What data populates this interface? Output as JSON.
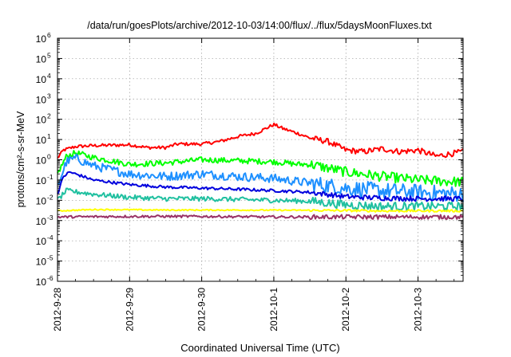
{
  "chart_data": {
    "type": "line",
    "title": "/data/run/goesPlots/archive/2012-10-03/14:00/flux/../flux/5daysMoonFluxes.txt",
    "xlabel": "Coordinated Universal Time (UTC)",
    "ylabel": "protons/cm²-s-sr-MeV",
    "y_scale": "log",
    "ylim": [
      1e-06,
      1000000.0
    ],
    "y_ticks": [
      {
        "exp": "-6"
      },
      {
        "exp": "-5"
      },
      {
        "exp": "-4"
      },
      {
        "exp": "-3"
      },
      {
        "exp": "-2"
      },
      {
        "exp": "-1"
      },
      {
        "exp": "0"
      },
      {
        "exp": "1"
      },
      {
        "exp": "2"
      },
      {
        "exp": "3"
      },
      {
        "exp": "4"
      },
      {
        "exp": "5"
      },
      {
        "exp": "6"
      }
    ],
    "y_tick_base": "10",
    "xlim": [
      "2012-09-28",
      "2012-10-03 15:00"
    ],
    "x_ticks": [
      "2012-9-28",
      "2012-9-29",
      "2012-9-30",
      "2012-10-1",
      "2012-10-2",
      "2012-10-3"
    ],
    "grid": true,
    "legend": "none",
    "series": [
      {
        "color": "#ff0000",
        "noise": 0.08,
        "points": [
          [
            "2012-09-28",
            1.2
          ],
          [
            "2012-09-28 02:00",
            3
          ],
          [
            "2012-09-28 06:00",
            4.5
          ],
          [
            "2012-09-28 12:00",
            5
          ],
          [
            "2012-09-29 00:00",
            5.5
          ],
          [
            "2012-09-29 06:00",
            4
          ],
          [
            "2012-09-29 12:00",
            4
          ],
          [
            "2012-09-29 16:00",
            6
          ],
          [
            "2012-09-30 00:00",
            6
          ],
          [
            "2012-09-30 06:00",
            8
          ],
          [
            "2012-09-30 12:00",
            14
          ],
          [
            "2012-09-30 18:00",
            20
          ],
          [
            "2012-10-01 00:00",
            55
          ],
          [
            "2012-10-01 03:00",
            35
          ],
          [
            "2012-10-01 08:00",
            20
          ],
          [
            "2012-10-01 12:00",
            12
          ],
          [
            "2012-10-01 18:00",
            8
          ],
          [
            "2012-10-02 00:00",
            3
          ],
          [
            "2012-10-02 06:00",
            2.5
          ],
          [
            "2012-10-02 12:00",
            3.5
          ],
          [
            "2012-10-02 18:00",
            2.5
          ],
          [
            "2012-10-03 00:00",
            3
          ],
          [
            "2012-10-03 06:00",
            1.5
          ],
          [
            "2012-10-03 15:00",
            2.5
          ]
        ]
      },
      {
        "color": "#00ff00",
        "noise": 0.14,
        "points": [
          [
            "2012-09-28",
            0.2
          ],
          [
            "2012-09-28 03:00",
            1.5
          ],
          [
            "2012-09-28 06:00",
            2.2
          ],
          [
            "2012-09-28 12:00",
            1.3
          ],
          [
            "2012-09-29 00:00",
            0.6
          ],
          [
            "2012-09-29 12:00",
            0.7
          ],
          [
            "2012-09-30 00:00",
            1.0
          ],
          [
            "2012-09-30 12:00",
            0.9
          ],
          [
            "2012-10-01 00:00",
            0.8
          ],
          [
            "2012-10-01 08:00",
            0.6
          ],
          [
            "2012-10-01 12:00",
            0.6
          ],
          [
            "2012-10-02 00:00",
            0.25
          ],
          [
            "2012-10-02 12:00",
            0.15
          ],
          [
            "2012-10-03 00:00",
            0.1
          ],
          [
            "2012-10-03 15:00",
            0.08
          ]
        ]
      },
      {
        "color": "#1e90ff",
        "noise": 0.22,
        "points": [
          [
            "2012-09-28",
            0.05
          ],
          [
            "2012-09-28 03:00",
            0.8
          ],
          [
            "2012-09-28 06:00",
            1.2
          ],
          [
            "2012-09-28 12:00",
            0.5
          ],
          [
            "2012-09-29 00:00",
            0.2
          ],
          [
            "2012-09-29 12:00",
            0.15
          ],
          [
            "2012-09-30 00:00",
            0.2
          ],
          [
            "2012-09-30 12:00",
            0.15
          ],
          [
            "2012-10-01 00:00",
            0.12
          ],
          [
            "2012-10-01 12:00",
            0.07
          ],
          [
            "2012-10-02 00:00",
            0.04
          ],
          [
            "2012-10-02 12:00",
            0.03
          ],
          [
            "2012-10-03 00:00",
            0.025
          ],
          [
            "2012-10-03 15:00",
            0.02
          ]
        ]
      },
      {
        "color": "#0000dd",
        "noise": 0.07,
        "points": [
          [
            "2012-09-28",
            0.02
          ],
          [
            "2012-09-28 02:00",
            0.15
          ],
          [
            "2012-09-28 04:00",
            0.25
          ],
          [
            "2012-09-28 12:00",
            0.1
          ],
          [
            "2012-09-29 00:00",
            0.06
          ],
          [
            "2012-09-29 12:00",
            0.045
          ],
          [
            "2012-09-30 00:00",
            0.04
          ],
          [
            "2012-09-30 12:00",
            0.035
          ],
          [
            "2012-10-01 00:00",
            0.03
          ],
          [
            "2012-10-01 12:00",
            0.025
          ],
          [
            "2012-10-02 00:00",
            0.015
          ],
          [
            "2012-10-02 12:00",
            0.013
          ],
          [
            "2012-10-03 00:00",
            0.012
          ],
          [
            "2012-10-03 15:00",
            0.012
          ]
        ]
      },
      {
        "color": "#20c0a0",
        "noise": 0.12,
        "points": [
          [
            "2012-09-28",
            0.01
          ],
          [
            "2012-09-28 03:00",
            0.03
          ],
          [
            "2012-09-28 12:00",
            0.02
          ],
          [
            "2012-09-29 00:00",
            0.014
          ],
          [
            "2012-09-29 12:00",
            0.012
          ],
          [
            "2012-09-30 00:00",
            0.012
          ],
          [
            "2012-09-30 12:00",
            0.011
          ],
          [
            "2012-10-01 00:00",
            0.01
          ],
          [
            "2012-10-01 12:00",
            0.009
          ],
          [
            "2012-10-02 00:00",
            0.006
          ],
          [
            "2012-10-02 12:00",
            0.005
          ],
          [
            "2012-10-03 00:00",
            0.005
          ],
          [
            "2012-10-03 15:00",
            0.005
          ]
        ]
      },
      {
        "color": "#ffff00",
        "noise": 0.03,
        "points": [
          [
            "2012-09-28",
            0.003
          ],
          [
            "2012-09-28 12:00",
            0.0035
          ],
          [
            "2012-09-29 12:00",
            0.0033
          ],
          [
            "2012-09-30 12:00",
            0.0033
          ],
          [
            "2012-10-01 12:00",
            0.0032
          ],
          [
            "2012-10-02 12:00",
            0.003
          ],
          [
            "2012-10-03 15:00",
            0.003
          ]
        ]
      },
      {
        "color": "#993366",
        "noise": 0.06,
        "points": [
          [
            "2012-09-28",
            0.0015
          ],
          [
            "2012-09-29 00:00",
            0.0016
          ],
          [
            "2012-09-30 00:00",
            0.0016
          ],
          [
            "2012-10-01 00:00",
            0.0015
          ],
          [
            "2012-10-02 00:00",
            0.0015
          ],
          [
            "2012-10-03 00:00",
            0.0015
          ],
          [
            "2012-10-03 15:00",
            0.0015
          ]
        ]
      }
    ]
  }
}
